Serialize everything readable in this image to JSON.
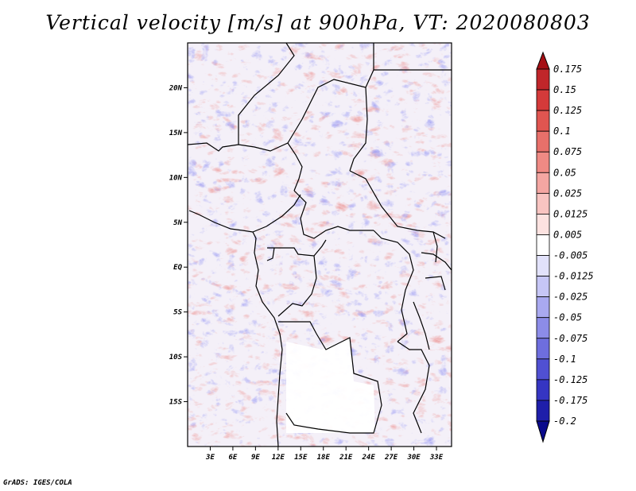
{
  "title": "Vertical velocity [m/s] at 900hPa, VT: 2020080803",
  "credit": "GrADS: IGES/COLA",
  "map": {
    "lat_labels": [
      "20N",
      "15N",
      "10N",
      "5N",
      "EQ",
      "5S",
      "10S",
      "15S"
    ],
    "lat_values": [
      20,
      15,
      10,
      5,
      0,
      -5,
      -10,
      -15
    ],
    "lon_labels": [
      "3E",
      "6E",
      "9E",
      "12E",
      "15E",
      "18E",
      "21E",
      "24E",
      "27E",
      "30E",
      "33E"
    ],
    "lon_values": [
      3,
      6,
      9,
      12,
      15,
      18,
      21,
      24,
      27,
      30,
      33
    ],
    "lon_range": [
      0,
      35
    ],
    "lat_range": [
      -20,
      25
    ]
  },
  "colorbar": {
    "labels": [
      "0.175",
      "0.15",
      "0.125",
      "0.1",
      "0.075",
      "0.05",
      "0.025",
      "0.0125",
      "0.005",
      "-0.005",
      "-0.0125",
      "-0.025",
      "-0.05",
      "-0.075",
      "-0.1",
      "-0.125",
      "-0.175",
      "-0.2"
    ],
    "colors": [
      "#a50f15",
      "#c0262a",
      "#d43a3a",
      "#e05550",
      "#e8706a",
      "#ef8a84",
      "#f4a6a2",
      "#f8c4c1",
      "#fce2e0",
      "#ffffff",
      "#e2e2fb",
      "#c6c6f6",
      "#a9a9f0",
      "#8c8ce8",
      "#6e6ede",
      "#5050d2",
      "#3535c2",
      "#1e1eaa",
      "#0a0a8c"
    ]
  }
}
